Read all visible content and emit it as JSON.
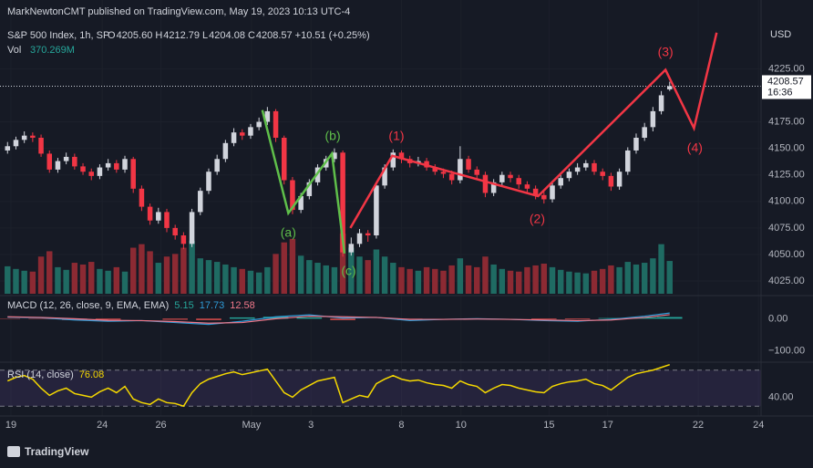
{
  "header": {
    "publisher": "MarkNewtonCMT published on TradingView.com, May 19, 2023 10:13 UTC-4",
    "symbol": "S&P 500 Index, 1h, SP",
    "ohlc": [
      {
        "key": "O",
        "value": "4205.60"
      },
      {
        "key": "H",
        "value": "4212.79"
      },
      {
        "key": "L",
        "value": "4204.08"
      },
      {
        "key": "C",
        "value": "4208.57"
      }
    ],
    "change": "+10.51 (+0.25%)",
    "volume_label": "Vol",
    "volume_value": "370.269M"
  },
  "chart_data": {
    "type": "candlestick",
    "currency": "USD",
    "countdown": "16:36",
    "grid": true,
    "xlim": [
      -0.9,
      89.9
    ],
    "xticks": [
      {
        "value": 0.4,
        "label": "19"
      },
      {
        "value": 11.3,
        "label": "24"
      },
      {
        "value": 18.3,
        "label": "26"
      },
      {
        "value": 29.1,
        "label": "May"
      },
      {
        "value": 36.2,
        "label": "3"
      },
      {
        "value": 47,
        "label": "8"
      },
      {
        "value": 54.1,
        "label": "10"
      },
      {
        "value": 64.6,
        "label": "15"
      },
      {
        "value": 71.6,
        "label": "17"
      },
      {
        "value": 82.4,
        "label": "22"
      },
      {
        "value": 89.6,
        "label": "24"
      }
    ],
    "ylim": [
      4013,
      4264
    ],
    "yticks": [
      {
        "value": 4025,
        "label": "4025.00"
      },
      {
        "value": 4050,
        "label": "4050.00"
      },
      {
        "value": 4075,
        "label": "4075.00"
      },
      {
        "value": 4100,
        "label": "4100.00"
      },
      {
        "value": 4125,
        "label": "4125.00"
      },
      {
        "value": 4150,
        "label": "4150.00"
      },
      {
        "value": 4175,
        "label": "4175.00"
      },
      {
        "value": 4225,
        "label": "4225.00"
      }
    ],
    "up_color": "#d1d4dc",
    "down_color": "#f23645",
    "open": [
      4148,
      4152,
      4158,
      4162,
      4160,
      4145,
      4130,
      4138,
      4142,
      4133,
      4128,
      4124,
      4132,
      4136,
      4130,
      4140,
      4112,
      4095,
      4082,
      4090,
      4075,
      4068,
      4060,
      4090,
      4110,
      4128,
      4140,
      4155,
      4165,
      4162,
      4170,
      4175,
      4185,
      4160,
      4120,
      4092,
      4105,
      4118,
      4132,
      4140,
      4146,
      4052,
      4060,
      4070,
      4068,
      4115,
      4132,
      4146,
      4140,
      4136,
      4138,
      4132,
      4128,
      4126,
      4120,
      4140,
      4130,
      4125,
      4108,
      4118,
      4125,
      4122,
      4116,
      4112,
      4106,
      4102,
      4115,
      4122,
      4128,
      4132,
      4136,
      4128,
      4124,
      4114,
      4128,
      4148,
      4160,
      4170,
      4185,
      4205.6
    ],
    "high": [
      4156,
      4161,
      4166,
      4165,
      4163,
      4148,
      4141,
      4146,
      4145,
      4136,
      4131,
      4135,
      4140,
      4139,
      4143,
      4142,
      4115,
      4098,
      4094,
      4093,
      4078,
      4071,
      4093,
      4113,
      4131,
      4144,
      4158,
      4169,
      4168,
      4173,
      4179,
      4189,
      4187,
      4162,
      4123,
      4108,
      4121,
      4135,
      4143,
      4150,
      4148,
      4066,
      4074,
      4073,
      4118,
      4135,
      4149,
      4148,
      4143,
      4142,
      4141,
      4135,
      4131,
      4129,
      4152,
      4143,
      4133,
      4128,
      4121,
      4128,
      4128,
      4125,
      4119,
      4115,
      4109,
      4118,
      4125,
      4131,
      4136,
      4139,
      4139,
      4131,
      4127,
      4131,
      4151,
      4164,
      4174,
      4189,
      4204,
      4212.79
    ],
    "low": [
      4145,
      4149,
      4155,
      4156,
      4142,
      4127,
      4127,
      4135,
      4130,
      4125,
      4120,
      4121,
      4129,
      4127,
      4127,
      4108,
      4091,
      4078,
      4079,
      4071,
      4064,
      4055,
      4057,
      4087,
      4107,
      4125,
      4137,
      4152,
      4158,
      4159,
      4167,
      4172,
      4156,
      4116,
      4088,
      4089,
      4102,
      4115,
      4129,
      4137,
      4048,
      4049,
      4057,
      4062,
      4065,
      4112,
      4129,
      4136,
      4132,
      4133,
      4129,
      4125,
      4122,
      4116,
      4117,
      4127,
      4121,
      4104,
      4105,
      4115,
      4118,
      4112,
      4108,
      4102,
      4098,
      4099,
      4112,
      4119,
      4125,
      4129,
      4125,
      4120,
      4110,
      4111,
      4125,
      4145,
      4157,
      4166,
      4182,
      4204.08
    ],
    "close": [
      4152,
      4158,
      4162,
      4160,
      4145,
      4130,
      4138,
      4142,
      4133,
      4128,
      4124,
      4132,
      4136,
      4130,
      4140,
      4112,
      4095,
      4082,
      4090,
      4075,
      4068,
      4060,
      4090,
      4110,
      4128,
      4140,
      4155,
      4165,
      4162,
      4170,
      4175,
      4185,
      4160,
      4120,
      4092,
      4105,
      4118,
      4132,
      4140,
      4146,
      4052,
      4060,
      4070,
      4068,
      4115,
      4132,
      4146,
      4140,
      4136,
      4138,
      4132,
      4128,
      4126,
      4120,
      4140,
      4130,
      4125,
      4108,
      4118,
      4125,
      4122,
      4116,
      4112,
      4106,
      4102,
      4115,
      4122,
      4128,
      4132,
      4136,
      4128,
      4124,
      4114,
      4128,
      4148,
      4160,
      4170,
      4185,
      4200,
      4208.57
    ],
    "volume": {
      "up_color": "#1f6b63",
      "down_color": "#8c2a33",
      "values": [
        310,
        280,
        260,
        250,
        420,
        480,
        300,
        270,
        350,
        330,
        360,
        280,
        260,
        300,
        250,
        520,
        560,
        480,
        350,
        420,
        450,
        520,
        600,
        400,
        380,
        360,
        330,
        300,
        280,
        260,
        240,
        300,
        450,
        580,
        620,
        430,
        380,
        350,
        320,
        300,
        680,
        520,
        420,
        380,
        500,
        420,
        350,
        300,
        280,
        260,
        300,
        280,
        260,
        320,
        400,
        320,
        300,
        420,
        330,
        280,
        260,
        250,
        300,
        320,
        340,
        300,
        270,
        250,
        240,
        230,
        260,
        280,
        320,
        300,
        360,
        330,
        350,
        400,
        560,
        370.269
      ]
    },
    "waves": [
      {
        "color": "#5fbf4a",
        "x": [
          30.4,
          33.5,
          38.7,
          40.2
        ],
        "y": [
          4186,
          4089,
          4145,
          4051
        ]
      },
      {
        "color": "#f23645",
        "x": [
          40.9,
          45.9,
          63.3,
          78.5,
          81.9,
          84.6
        ],
        "y": [
          4075,
          4143,
          4105,
          4224,
          4169,
          4259
        ]
      }
    ],
    "wave_labels": [
      {
        "text": "(a)",
        "color": "#5fbf4a",
        "x": 33.5,
        "y": 4070
      },
      {
        "text": "(b)",
        "color": "#5fbf4a",
        "x": 38.8,
        "y": 4161
      },
      {
        "text": "(c)",
        "color": "#5fbf4a",
        "x": 40.7,
        "y": 4034
      },
      {
        "text": "(1)",
        "color": "#f23645",
        "x": 46.4,
        "y": 4161
      },
      {
        "text": "(2)",
        "color": "#f23645",
        "x": 63.2,
        "y": 4083
      },
      {
        "text": "(3)",
        "color": "#f23645",
        "x": 78.5,
        "y": 4240
      },
      {
        "text": "(4)",
        "color": "#f23645",
        "x": 82,
        "y": 4150
      }
    ],
    "macd": {
      "title": "MACD (12, 26, close, 9, EMA, EMA)",
      "ylim": [
        -133.3,
        66.7
      ],
      "yticks": [
        {
          "value": 0,
          "label": "0.00"
        },
        {
          "value": -100,
          "label": "−100.00"
        }
      ],
      "x": [
        0,
        4,
        8,
        12,
        16,
        20,
        24,
        28,
        32,
        36,
        40,
        44,
        48,
        52,
        56,
        60,
        64,
        68,
        72,
        76,
        79
      ],
      "hist": [
        -1,
        -1,
        -4,
        -3,
        0,
        -3,
        -4,
        4,
        6,
        4,
        -4,
        0,
        -4,
        0,
        1,
        0,
        -2,
        -2,
        2,
        4,
        5.15
      ],
      "macd": [
        5,
        3,
        -4,
        -8,
        -6,
        -12,
        -18,
        -8,
        6,
        12,
        2,
        4,
        -6,
        -2,
        0,
        -2,
        -6,
        -8,
        -2,
        8,
        17.73
      ],
      "signal": [
        6,
        4,
        0,
        -5,
        -6,
        -9,
        -14,
        -12,
        0,
        8,
        6,
        4,
        -2,
        -2,
        -1,
        -2,
        -4,
        -6,
        -4,
        4,
        12.58
      ],
      "hist_up_color": "#26a69a",
      "hist_down_color": "#ef5350",
      "macd_color": "#2e9bd6",
      "signal_color": "#f0788a"
    },
    "rsi": {
      "title": "RSI (14, close)",
      "color": "#f5d800",
      "ylim": [
        23.2,
        77.8
      ],
      "yticks": [
        {
          "value": 40,
          "label": "40.00"
        }
      ],
      "bands": [
        30,
        70
      ],
      "values": [
        58,
        62,
        64,
        60,
        50,
        42,
        47,
        50,
        44,
        42,
        40,
        46,
        50,
        45,
        52,
        38,
        34,
        32,
        38,
        34,
        33,
        30,
        45,
        55,
        60,
        63,
        66,
        68,
        65,
        67,
        69,
        71,
        58,
        45,
        40,
        48,
        53,
        58,
        60,
        62,
        34,
        38,
        42,
        40,
        55,
        60,
        64,
        60,
        58,
        59,
        56,
        54,
        53,
        50,
        58,
        54,
        52,
        45,
        50,
        54,
        53,
        50,
        48,
        46,
        45,
        52,
        55,
        57,
        58,
        60,
        55,
        53,
        48,
        55,
        62,
        66,
        68,
        70,
        73,
        76.08
      ]
    }
  },
  "footer": {
    "brand": "TradingView"
  }
}
